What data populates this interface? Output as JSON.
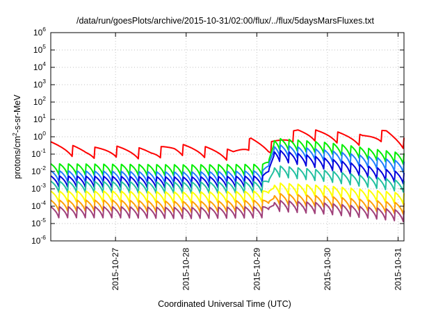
{
  "chart_data": {
    "type": "line",
    "title": "/data/run/goesPlots/archive/2015-10-31/02:00/flux/../flux/5daysMarsFluxes.txt",
    "xlabel": "Coordinated Universal Time (UTC)",
    "ylabel": {
      "prefix": "protons/cm",
      "sup": "2",
      "suffix": "-s-sr-MeV"
    },
    "y_scale": "log",
    "ylim": [
      1e-06,
      1000000.0
    ],
    "y_ticks": [
      {
        "base": "10",
        "exp": "6",
        "value": 1000000.0
      },
      {
        "base": "10",
        "exp": "5",
        "value": 100000.0
      },
      {
        "base": "10",
        "exp": "4",
        "value": 10000.0
      },
      {
        "base": "10",
        "exp": "3",
        "value": 1000.0
      },
      {
        "base": "10",
        "exp": "2",
        "value": 100.0
      },
      {
        "base": "10",
        "exp": "1",
        "value": 10.0
      },
      {
        "base": "10",
        "exp": "0",
        "value": 1.0
      },
      {
        "base": "10",
        "exp": "-1",
        "value": 0.1
      },
      {
        "base": "10",
        "exp": "-2",
        "value": 0.01
      },
      {
        "base": "10",
        "exp": "-3",
        "value": 0.001
      },
      {
        "base": "10",
        "exp": "-4",
        "value": 0.0001
      },
      {
        "base": "10",
        "exp": "-5",
        "value": 1e-05
      },
      {
        "base": "10",
        "exp": "-6",
        "value": 1e-06
      }
    ],
    "x_range_days": [
      "2015-10-26T02:00",
      "2015-10-31T02:00"
    ],
    "x_ticks": [
      "2015-10-27",
      "2015-10-28",
      "2015-10-29",
      "2015-10-30",
      "2015-10-31"
    ],
    "grid": true,
    "legend": "none",
    "sawtooth_period_hours": 3,
    "event_time": "2015-10-29T04:00",
    "series": [
      {
        "color": "#ff0000",
        "points": [
          [
            "2015-10-26T02:00",
            0.35
          ],
          [
            "2015-10-26T14:00",
            0.16
          ],
          [
            "2015-10-27T00:00",
            0.2
          ],
          [
            "2015-10-27T12:00",
            0.14
          ],
          [
            "2015-10-27T20:00",
            0.27
          ],
          [
            "2015-10-28T06:00",
            0.19
          ],
          [
            "2015-10-28T16:00",
            0.12
          ],
          [
            "2015-10-28T22:00",
            0.6
          ],
          [
            "2015-10-29T04:00",
            0.3
          ],
          [
            "2015-10-29T14:00",
            2.0
          ],
          [
            "2015-10-30T00:00",
            1.5
          ],
          [
            "2015-10-30T12:00",
            0.9
          ],
          [
            "2015-10-30T20:00",
            1.8
          ],
          [
            "2015-10-31T02:00",
            0.6
          ]
        ]
      },
      {
        "color": "#00ee00",
        "points": [
          [
            "2015-10-26T02:00",
            0.015
          ],
          [
            "2015-10-27T00:00",
            0.014
          ],
          [
            "2015-10-28T00:00",
            0.013
          ],
          [
            "2015-10-29T02:00",
            0.014
          ],
          [
            "2015-10-29T04:00",
            0.04
          ],
          [
            "2015-10-29T06:00",
            0.45
          ],
          [
            "2015-10-30T00:00",
            0.25
          ],
          [
            "2015-10-31T02:00",
            0.06
          ]
        ]
      },
      {
        "color": "#1e7fff",
        "points": [
          [
            "2015-10-26T02:00",
            0.006
          ],
          [
            "2015-10-27T00:00",
            0.0055
          ],
          [
            "2015-10-28T00:00",
            0.005
          ],
          [
            "2015-10-29T02:00",
            0.006
          ],
          [
            "2015-10-29T04:00",
            0.025
          ],
          [
            "2015-10-29T06:00",
            0.2
          ],
          [
            "2015-10-30T00:00",
            0.09
          ],
          [
            "2015-10-31T02:00",
            0.02
          ]
        ]
      },
      {
        "color": "#0000dd",
        "points": [
          [
            "2015-10-26T02:00",
            0.003
          ],
          [
            "2015-10-27T00:00",
            0.0028
          ],
          [
            "2015-10-28T00:00",
            0.0026
          ],
          [
            "2015-10-29T02:00",
            0.003
          ],
          [
            "2015-10-29T04:00",
            0.012
          ],
          [
            "2015-10-29T06:00",
            0.1
          ],
          [
            "2015-10-30T00:00",
            0.03
          ],
          [
            "2015-10-31T02:00",
            0.0045
          ]
        ]
      },
      {
        "color": "#22c0a0",
        "points": [
          [
            "2015-10-26T02:00",
            0.0015
          ],
          [
            "2015-10-27T00:00",
            0.0014
          ],
          [
            "2015-10-28T00:00",
            0.0013
          ],
          [
            "2015-10-29T02:00",
            0.0014
          ],
          [
            "2015-10-29T04:00",
            0.003
          ],
          [
            "2015-10-29T06:00",
            0.012
          ],
          [
            "2015-10-30T00:00",
            0.006
          ],
          [
            "2015-10-31T02:00",
            0.0015
          ]
        ]
      },
      {
        "color": "#ffff00",
        "points": [
          [
            "2015-10-26T02:00",
            0.0004
          ],
          [
            "2015-10-27T00:00",
            0.0004
          ],
          [
            "2015-10-28T00:00",
            0.00035
          ],
          [
            "2015-10-29T02:00",
            0.0004
          ],
          [
            "2015-10-29T04:00",
            0.0007
          ],
          [
            "2015-10-29T06:00",
            0.0012
          ],
          [
            "2015-10-30T00:00",
            0.0008
          ],
          [
            "2015-10-31T02:00",
            0.0003
          ]
        ]
      },
      {
        "color": "#ffa000",
        "points": [
          [
            "2015-10-26T02:00",
            0.00012
          ],
          [
            "2015-10-27T00:00",
            0.00012
          ],
          [
            "2015-10-28T00:00",
            0.0001
          ],
          [
            "2015-10-29T02:00",
            0.00012
          ],
          [
            "2015-10-29T04:00",
            0.00018
          ],
          [
            "2015-10-29T06:00",
            0.0003
          ],
          [
            "2015-10-30T00:00",
            0.0002
          ],
          [
            "2015-10-31T02:00",
            8e-05
          ]
        ]
      },
      {
        "color": "#a0407a",
        "points": [
          [
            "2015-10-26T02:00",
            5e-05
          ],
          [
            "2015-10-27T00:00",
            5e-05
          ],
          [
            "2015-10-28T00:00",
            4.5e-05
          ],
          [
            "2015-10-29T02:00",
            5e-05
          ],
          [
            "2015-10-29T04:00",
            8e-05
          ],
          [
            "2015-10-29T06:00",
            0.00012
          ],
          [
            "2015-10-30T00:00",
            8e-05
          ],
          [
            "2015-10-31T02:00",
            3e-05
          ]
        ]
      }
    ]
  }
}
